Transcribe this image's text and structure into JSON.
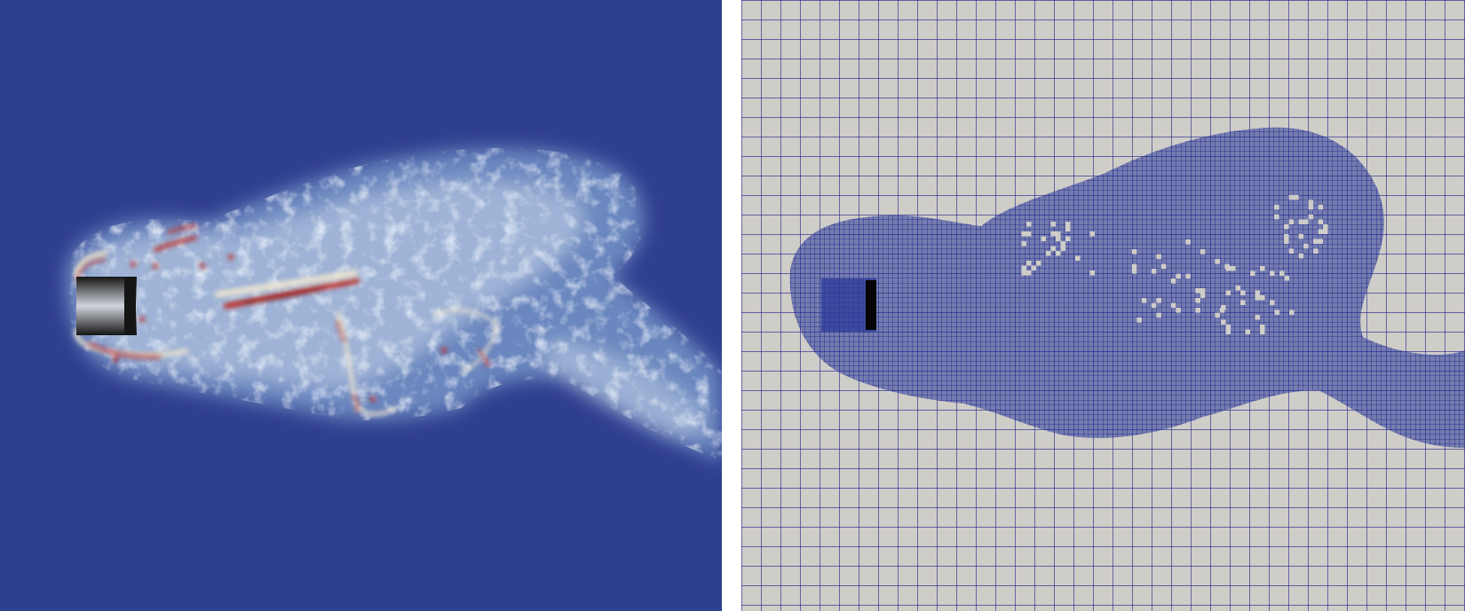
{
  "figure": {
    "panels": [
      {
        "id": "flow-field",
        "colors": {
          "background": "#2f3f8f",
          "wake_mid": "#7f9fcf",
          "wake_light": "#c9d9ea",
          "wake_cream": "#eee5d0",
          "vortex_red": "#c0281c",
          "vortex_dark_red": "#7f0a0a",
          "obstacle_light": "#d0d4dc",
          "obstacle_dark": "#151515"
        }
      },
      {
        "id": "adaptive-mesh",
        "colors": {
          "background": "#cfcdc8",
          "grid_line": "#1f1f8a",
          "refined_fill": "#2a3a9a",
          "obstacle_dark": "#050505"
        }
      }
    ],
    "divider_color": "#ffffff"
  }
}
